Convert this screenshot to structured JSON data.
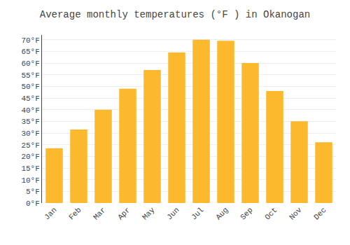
{
  "chart_data": {
    "type": "bar",
    "title": "Average monthly temperatures (°F ) in Okanogan",
    "categories": [
      "Jan",
      "Feb",
      "Mar",
      "Apr",
      "May",
      "Jun",
      "Jul",
      "Aug",
      "Sep",
      "Oct",
      "Nov",
      "Dec"
    ],
    "values": [
      23.5,
      31.5,
      40.0,
      49.0,
      57.0,
      64.5,
      70.0,
      69.5,
      60.0,
      48.0,
      35.0,
      26.0
    ],
    "color": "#FDB92E",
    "ylim": [
      0,
      72
    ],
    "yticks": [
      {
        "value": 0,
        "label": "0°F"
      },
      {
        "value": 5,
        "label": "5°F"
      },
      {
        "value": 10,
        "label": "10°F"
      },
      {
        "value": 15,
        "label": "15°F"
      },
      {
        "value": 20,
        "label": "20°F"
      },
      {
        "value": 25,
        "label": "25°F"
      },
      {
        "value": 30,
        "label": "30°F"
      },
      {
        "value": 35,
        "label": "35°F"
      },
      {
        "value": 40,
        "label": "40°F"
      },
      {
        "value": 45,
        "label": "45°F"
      },
      {
        "value": 50,
        "label": "50°F"
      },
      {
        "value": 55,
        "label": "55°F"
      },
      {
        "value": 60,
        "label": "60°F"
      },
      {
        "value": 65,
        "label": "65°F"
      },
      {
        "value": 70,
        "label": "70°F"
      }
    ],
    "grid": true
  }
}
